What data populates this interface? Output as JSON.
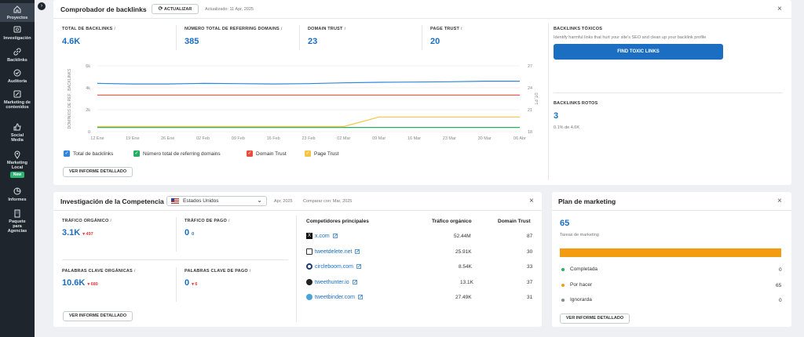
{
  "sidebar": {
    "items": [
      {
        "label": "Proyectos",
        "icon": "home-icon"
      },
      {
        "label": "Investigación",
        "icon": "search-icon"
      },
      {
        "label": "Backlinks",
        "icon": "link-icon"
      },
      {
        "label": "Auditoría",
        "icon": "check-circle-icon"
      },
      {
        "label": "Marketing de contenidos",
        "icon": "edit-icon"
      },
      {
        "label": "Social Media",
        "icon": "thumbs-up-icon"
      },
      {
        "label": "Marketing Local",
        "icon": "map-pin-icon"
      },
      {
        "label": "Informes",
        "icon": "chart-pie-icon"
      },
      {
        "label": "Paquete para Agencias",
        "icon": "building-icon"
      }
    ],
    "new_badge": "New"
  },
  "backlinks": {
    "title": "Comprobador de backlinks",
    "update_button": "ACTUALIZAR",
    "updated": "Actualizado: 11 Apr, 2025",
    "metrics": [
      {
        "label": "TOTAL DE BACKLINKS",
        "value": "4.6K"
      },
      {
        "label": "NÚMERO TOTAL DE REFERRING DOMAINS",
        "value": "385"
      },
      {
        "label": "DOMAIN TRUST",
        "value": "23"
      },
      {
        "label": "PAGE TRUST",
        "value": "20"
      }
    ],
    "toxic_label": "BACKLINKS TÓXICOS",
    "toxic_desc": "Identify harmful links that hurt your site's SEO and clean up your backlink profile",
    "toxic_button": "FIND TOXIC LINKS",
    "broken_label": "BACKLINKS ROTOS",
    "broken_value": "3",
    "broken_pct": "0.1% de 4.6K",
    "detail_button": "VER INFORME DETALLADO",
    "info_mark": "i"
  },
  "chart_data": {
    "type": "line",
    "x": [
      "12 Ene",
      "19 Ene",
      "26 Ene",
      "02 Feb",
      "09 Feb",
      "16 Feb",
      "23 Feb",
      "02 Mar",
      "09 Mar",
      "16 Mar",
      "23 Mar",
      "30 Mar",
      "06 Abr"
    ],
    "yticks_left": [
      "6k",
      "4k",
      "2k",
      "0"
    ],
    "yticks_right": [
      "27",
      "24",
      "21",
      "18"
    ],
    "ylabel_left": "DOMINIOS DE REF., BACKLINKS",
    "ylabel_right": "DT, PT",
    "ylim_left": [
      0,
      6000
    ],
    "ylim_right": [
      18,
      27
    ],
    "series": [
      {
        "name": "Total de backlinks",
        "axis": "left",
        "color": "#2e86de",
        "checkbox": "#2e86de",
        "values": [
          4400,
          4350,
          4350,
          4400,
          4380,
          4350,
          4380,
          4450,
          4500,
          4520,
          4550,
          4600,
          4600
        ]
      },
      {
        "name": "Número total de referring domains",
        "axis": "left",
        "color": "#27ae60",
        "checkbox": "#27ae60",
        "values": [
          385,
          385,
          385,
          385,
          385,
          385,
          385,
          385,
          385,
          385,
          385,
          385,
          385
        ]
      },
      {
        "name": "Domain Trust",
        "axis": "right",
        "color": "#e74c3c",
        "checkbox": "#e74c3c",
        "values": [
          23,
          23,
          23,
          23,
          23,
          23,
          23,
          23,
          23,
          23,
          23,
          23,
          23
        ]
      },
      {
        "name": "Page Trust",
        "axis": "right",
        "color": "#f5c542",
        "checkbox": "#f5c542",
        "values": [
          18.7,
          18.7,
          18.7,
          18.7,
          18.7,
          18.7,
          18.7,
          18.7,
          20,
          20,
          20,
          20,
          20
        ]
      }
    ]
  },
  "competition": {
    "title": "Investigación de la Competencia",
    "country": "Estados Unidos",
    "date": "Apr, 2025",
    "compare": "Comparar con: Mar, 2025",
    "organic_label": "TRÁFICO ORGÁNICO",
    "organic_value": "3.1K",
    "organic_change": "▾ 497",
    "paid_label": "TRÁFICO DE PAGO",
    "paid_value": "0",
    "paid_change": "0",
    "org_kw_label": "PALABRAS CLAVE ORGÁNICAS",
    "org_kw_value": "10.6K",
    "org_kw_change": "▾ 680",
    "paid_kw_label": "PALABRAS CLAVE DE PAGO",
    "paid_kw_value": "0",
    "paid_kw_change": "▾ 6",
    "detail_button": "VER INFORME DETALLADO",
    "table_headers": [
      "Competidores principales",
      "Tráfico orgánico",
      "Domain Trust"
    ],
    "rows": [
      {
        "site": "x.com",
        "traffic": "52.44M",
        "dt": "87",
        "icon": "x-logo-icon"
      },
      {
        "site": "tweetdelete.net",
        "traffic": "25.91K",
        "dt": "30",
        "icon": "trash-icon"
      },
      {
        "site": "circleboom.com",
        "traffic": "8.54K",
        "dt": "33",
        "icon": "circle-logo-icon"
      },
      {
        "site": "tweethunter.io",
        "traffic": "13.1K",
        "dt": "37",
        "icon": "hunter-logo-icon"
      },
      {
        "site": "tweetbinder.com",
        "traffic": "27.49K",
        "dt": "31",
        "icon": "binder-logo-icon"
      }
    ]
  },
  "plan": {
    "title": "Plan de marketing",
    "value": "65",
    "subtitle": "Tareas de marketing",
    "progress_color": "#f39c12",
    "rows": [
      {
        "label": "Completada",
        "count": "0",
        "color": "#27ae60"
      },
      {
        "label": "Por hacer",
        "count": "65",
        "color": "#f39c12"
      },
      {
        "label": "Ignorarda",
        "count": "0",
        "color": "#7f8c8d"
      }
    ],
    "detail_button": "VER INFORME DETALLADO"
  },
  "close_mark": "×",
  "expand_mark": "›",
  "select_arrow": "⌄"
}
